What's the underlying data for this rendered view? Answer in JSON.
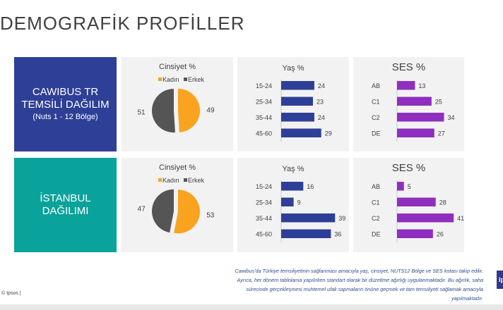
{
  "page_title": "DEMOGRAFİK PROFİLLER",
  "rows": [
    {
      "label_lines": [
        "CAWIBUS TR",
        "TEMSİLİ DAĞILIM"
      ],
      "label_sub": "(Nuts 1 - 12 Bölge)",
      "label_color": "#2e3f97"
    },
    {
      "label_lines": [
        "İSTANBUL",
        "DAĞILIMI"
      ],
      "label_sub": "",
      "label_color": "#0aa39b"
    }
  ],
  "chart_data": [
    {
      "type": "pie",
      "title": "Cinsiyet %",
      "legend": [
        "Kadın",
        "Erkek"
      ],
      "slices": [
        {
          "name": "Kadın",
          "value": 49,
          "color": "#f9a31f"
        },
        {
          "name": "Erkek",
          "value": 51,
          "color": "#555555"
        }
      ]
    },
    {
      "type": "bar",
      "orientation": "horizontal",
      "title": "Yaş %",
      "categories": [
        "15-24",
        "25-34",
        "35-44",
        "45-60"
      ],
      "values": [
        24,
        23,
        24,
        29
      ],
      "xlim": [
        0,
        45
      ],
      "color": "#2e3f97"
    },
    {
      "type": "bar",
      "orientation": "horizontal",
      "title": "SES %",
      "categories": [
        "AB",
        "C1",
        "C2",
        "DE"
      ],
      "values": [
        13,
        25,
        34,
        27
      ],
      "xlim": [
        0,
        45
      ],
      "color": "#8f2fc0"
    },
    {
      "type": "pie",
      "title": "Cinsiyet %",
      "legend": [
        "Kadın",
        "Erkek"
      ],
      "slices": [
        {
          "name": "Kadın",
          "value": 53,
          "color": "#f9a31f"
        },
        {
          "name": "Erkek",
          "value": 47,
          "color": "#555555"
        }
      ]
    },
    {
      "type": "bar",
      "orientation": "horizontal",
      "title": "Yaş %",
      "categories": [
        "15-24",
        "25-34",
        "35-44",
        "45-60"
      ],
      "values": [
        16,
        9,
        39,
        36
      ],
      "xlim": [
        0,
        45
      ],
      "color": "#2e3f97"
    },
    {
      "type": "bar",
      "orientation": "horizontal",
      "title": "SES %",
      "categories": [
        "AB",
        "C1",
        "C2",
        "DE"
      ],
      "values": [
        5,
        28,
        41,
        26
      ],
      "xlim": [
        0,
        45
      ],
      "color": "#8f2fc0"
    }
  ],
  "footnote": [
    "Cawibus'da Türkiye temsiliyetinin sağlanması amacıyla  yaş, cinsiyet, NUTS12 Bölge ve SES kotası takip edilir.",
    "Ayrıca, her dönem tablolama yapılırken standart olarak bir düzeltme  ağırlığı uygulanmaktadır. Bu ağırlık, saha",
    "sürecinde gerçekleşmesi muhtemel ufak sapmaların önüne geçmek ve tam temsiliyeti sağlamak amacıyla",
    "yapılmaktadır."
  ],
  "copyright": "© Ipsos |",
  "logo_text": "Ipsos"
}
